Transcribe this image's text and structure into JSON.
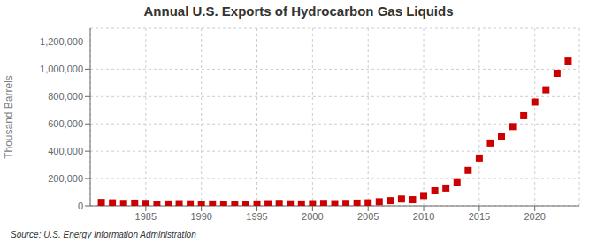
{
  "chart_data": {
    "type": "scatter",
    "title": "Annual U.S. Exports of Hydrocarbon Gas Liquids",
    "y_label": "Thousand Barrels",
    "annotation": "Source: U.S. Energy Information Administration",
    "x": [
      1981,
      1982,
      1983,
      1984,
      1985,
      1986,
      1987,
      1988,
      1989,
      1990,
      1991,
      1992,
      1993,
      1994,
      1995,
      1996,
      1997,
      1998,
      1999,
      2000,
      2001,
      2002,
      2003,
      2004,
      2005,
      2006,
      2007,
      2008,
      2009,
      2010,
      2011,
      2012,
      2013,
      2014,
      2015,
      2016,
      2017,
      2018,
      2019,
      2020,
      2021,
      2022,
      2023
    ],
    "values": [
      25000,
      22000,
      18000,
      20000,
      18000,
      12000,
      14000,
      16000,
      15000,
      13000,
      14000,
      13000,
      12000,
      12000,
      14000,
      16000,
      18000,
      15000,
      14000,
      16000,
      18000,
      16000,
      18000,
      20000,
      22000,
      30000,
      38000,
      50000,
      45000,
      75000,
      110000,
      130000,
      170000,
      260000,
      350000,
      460000,
      510000,
      580000,
      660000,
      760000,
      850000,
      970000,
      1060000
    ],
    "color": "#cc0000",
    "marker": "square",
    "xlim": [
      1980,
      2024
    ],
    "xticks": [
      1985,
      1990,
      1995,
      2000,
      2005,
      2010,
      2015,
      2020
    ],
    "ylim": [
      0,
      1300000
    ],
    "yticks": [
      0,
      {
        "value": 200000,
        "label": "200,000"
      },
      {
        "value": 400000,
        "label": "400,000"
      },
      {
        "value": 600000,
        "label": "600,000"
      },
      {
        "value": 800000,
        "label": "800,000"
      },
      {
        "value": 1000000,
        "label": "1,000,000"
      },
      {
        "value": 1200000,
        "label": "1,200,000"
      }
    ],
    "grid": true
  }
}
